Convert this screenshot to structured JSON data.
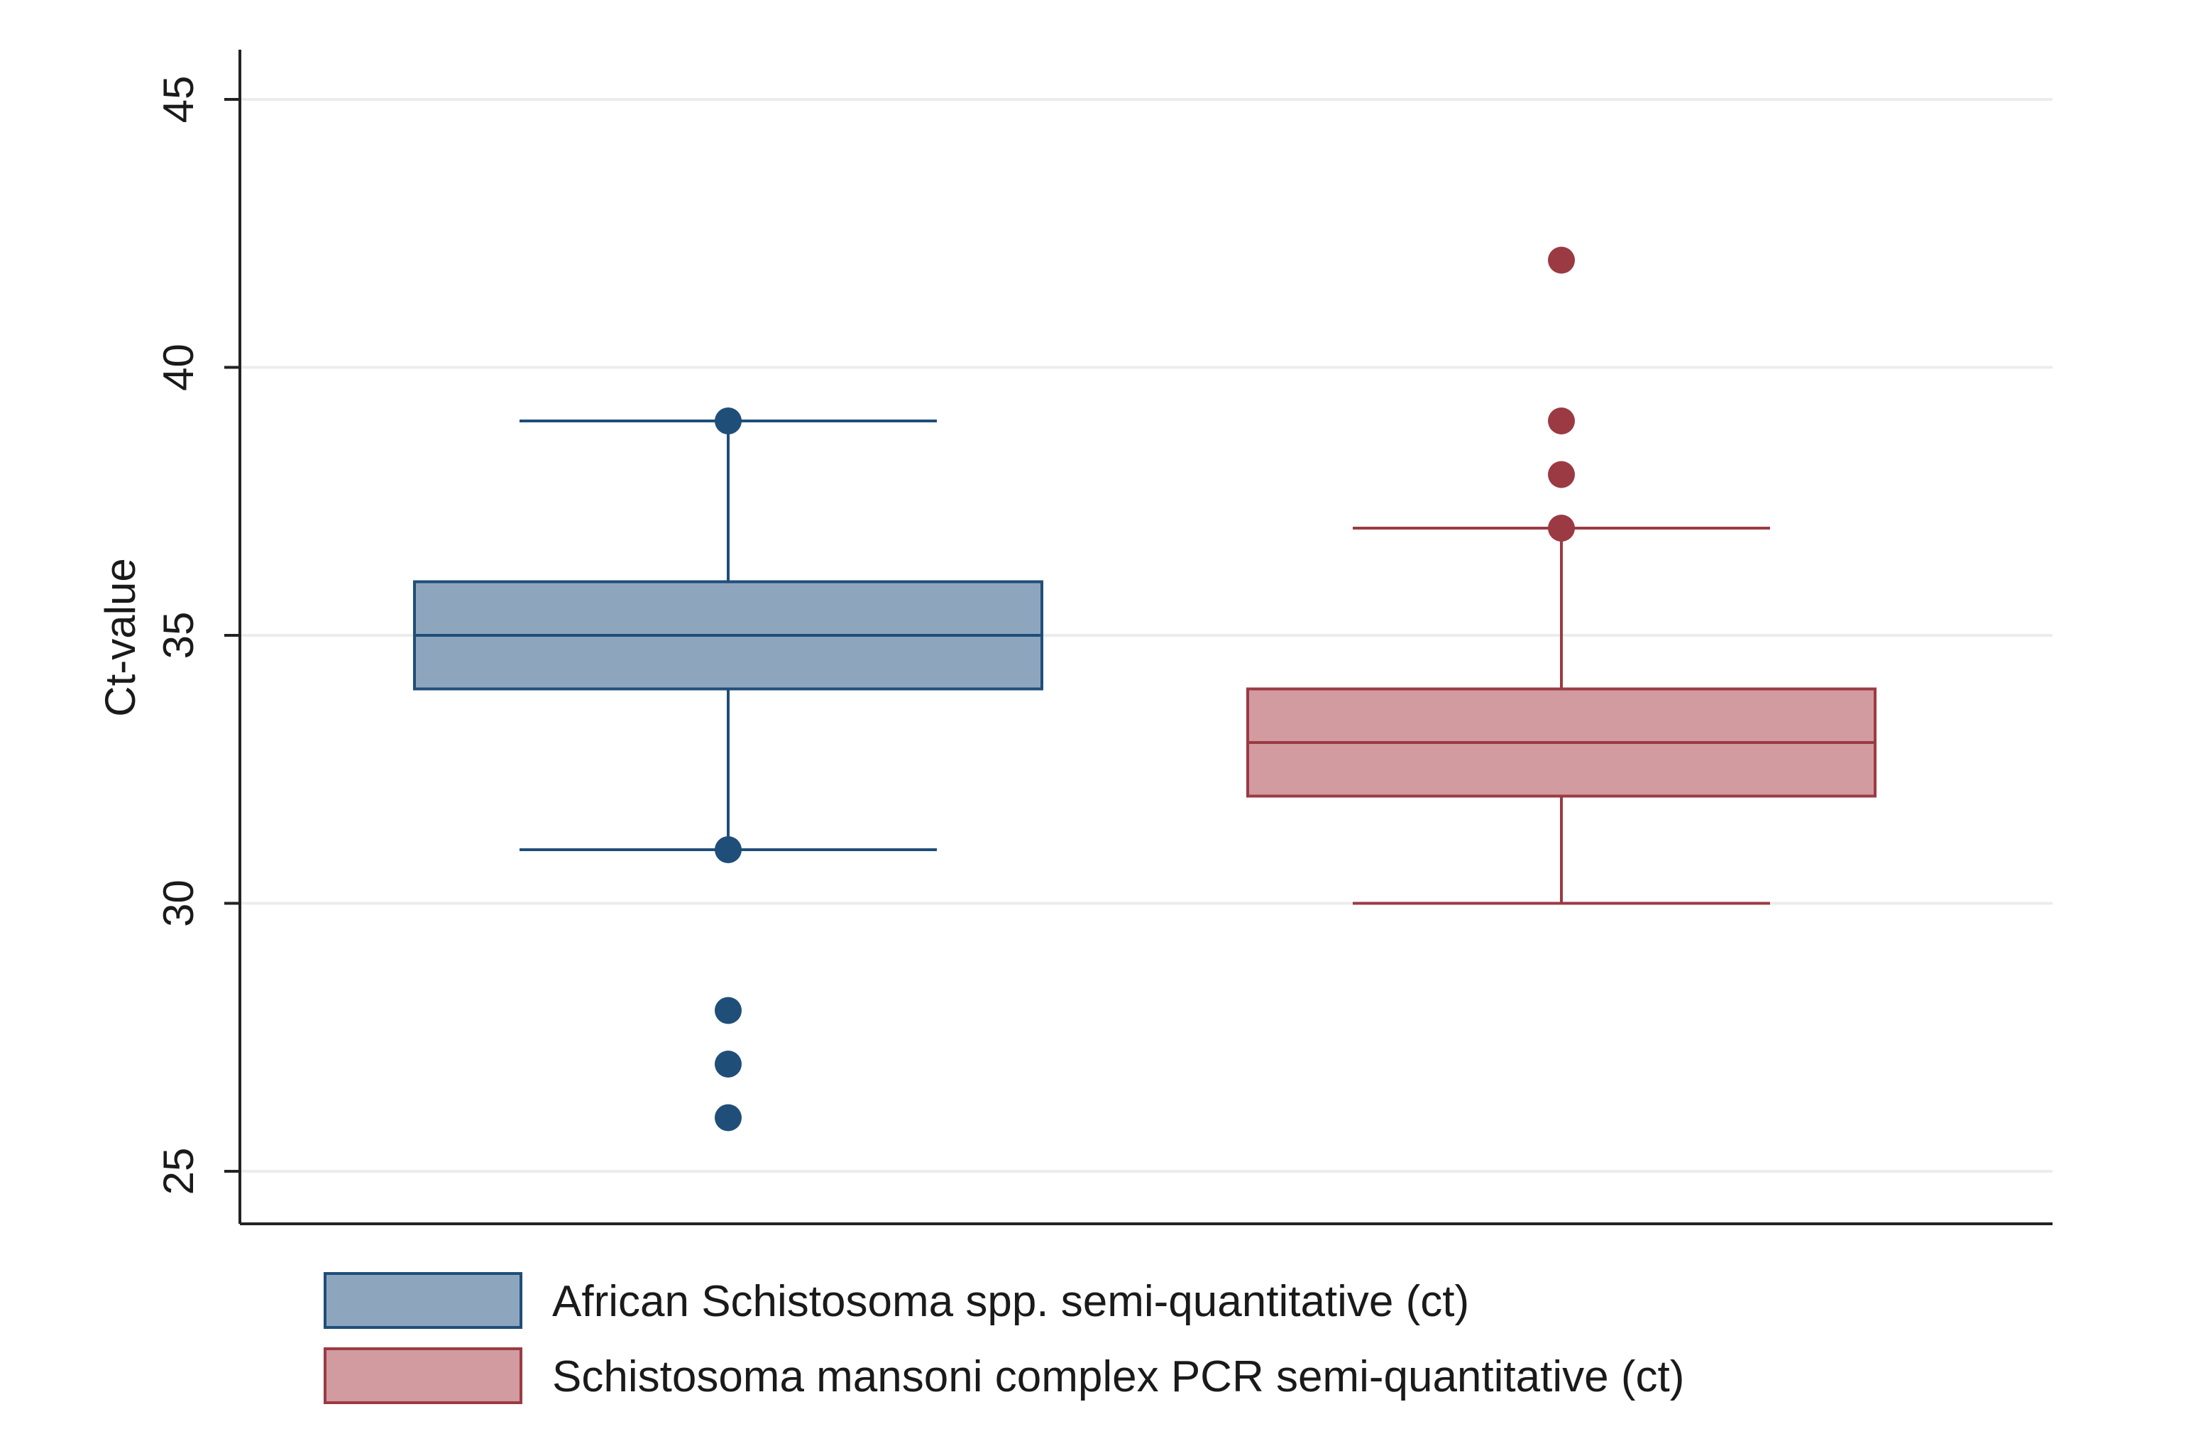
{
  "chart_data": {
    "type": "box",
    "title": "",
    "xlabel": "",
    "ylabel": "Ct-value",
    "ylim": [
      24,
      46
    ],
    "yticks": [
      25,
      30,
      35,
      40,
      45
    ],
    "y_tick_labels": [
      "25",
      "30",
      "35",
      "40",
      "45"
    ],
    "grid": "horizontal",
    "legend_position": "bottom",
    "series": [
      {
        "name": "African Schistosoma spp. semi-quantitative (ct)",
        "color": "#1f4e79",
        "fill": "#8ea6bd",
        "whisker_low": 31,
        "q1": 34,
        "median": 35,
        "q3": 36,
        "whisker_high": 39,
        "outliers": [
          39,
          31,
          28,
          27,
          26
        ]
      },
      {
        "name": "Schistosoma mansoni complex PCR semi-quantitative (ct)",
        "color": "#9b3a43",
        "fill": "#d19ba0",
        "whisker_low": 30,
        "q1": 32,
        "median": 33,
        "q3": 34,
        "whisker_high": 37,
        "outliers": [
          37,
          38,
          39,
          42
        ]
      }
    ]
  }
}
